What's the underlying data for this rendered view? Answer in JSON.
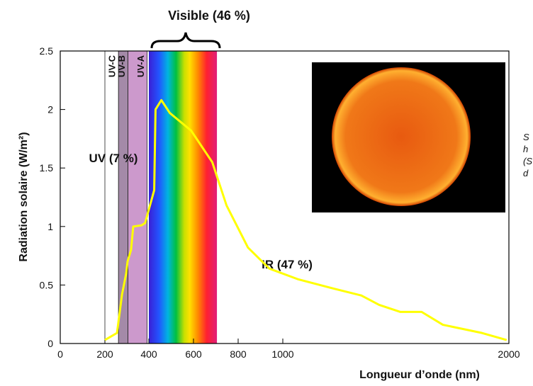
{
  "chart_data": {
    "type": "line",
    "x_label": "Longueur d’onde (nm)",
    "y_label": "Radiation solaire (W/m²)",
    "xlim": [
      0,
      2000
    ],
    "xticks": [
      0,
      200,
      400,
      600,
      800,
      1000,
      2000
    ],
    "ylim": [
      0,
      2.5
    ],
    "yticks": [
      0,
      0.5,
      1,
      1.5,
      2,
      2.5
    ],
    "series": [
      {
        "color": "#ffff00",
        "x": [
          200,
          255,
          278,
          297,
          303,
          319,
          329,
          367,
          383,
          405,
          424,
          430,
          456,
          494,
          589,
          684,
          748,
          844,
          940,
          1066,
          1223,
          1348,
          1426,
          1520,
          1614,
          1708,
          1881,
          1990
        ],
        "values": [
          0.03,
          0.09,
          0.42,
          0.6,
          0.7,
          0.8,
          1.0,
          1.01,
          1.03,
          1.18,
          1.31,
          2.0,
          2.08,
          1.97,
          1.82,
          1.55,
          1.18,
          0.82,
          0.64,
          0.55,
          0.47,
          0.41,
          0.33,
          0.27,
          0.27,
          0.16,
          0.09,
          0.03
        ]
      }
    ],
    "bands": [
      {
        "name": "UV-C",
        "range": [
          200,
          262
        ],
        "color": "#ffffff",
        "label_color": "#111111"
      },
      {
        "name": "UV-B",
        "range": [
          262,
          305
        ],
        "color": "#a48aa8",
        "label_color": "#f5d33a"
      },
      {
        "name": "UV-A",
        "range": [
          305,
          392
        ],
        "color": "#cc99cc",
        "label_color": "#f5d33a"
      }
    ],
    "visible_range": [
      400,
      705
    ],
    "annotations": {
      "visible": "Visible (46 %)",
      "uv": "UV (7 %)",
      "ir": "IR (47 %)"
    },
    "side_note_lines": [
      "S",
      "h",
      "(S",
      "d"
    ]
  }
}
